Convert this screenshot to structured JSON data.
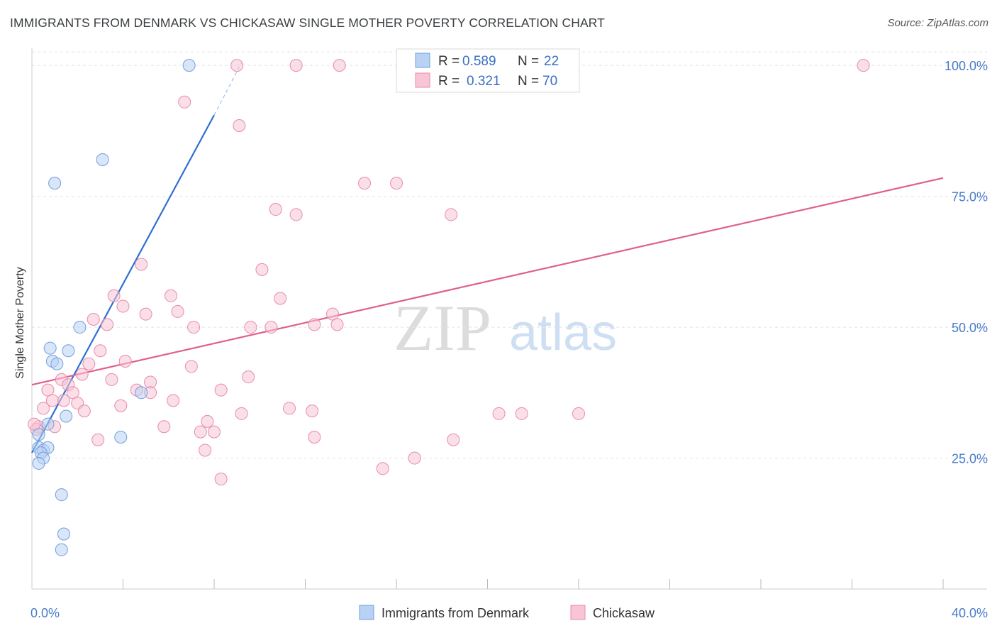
{
  "title": "IMMIGRANTS FROM DENMARK VS CHICKASAW SINGLE MOTHER POVERTY CORRELATION CHART",
  "source": "Source: ZipAtlas.com",
  "watermark": {
    "zip": "ZIP",
    "atlas": "atlas"
  },
  "chart_data": {
    "type": "scatter",
    "title": "IMMIGRANTS FROM DENMARK VS CHICKASAW SINGLE MOTHER POVERTY CORRELATION CHART",
    "xlabel": "",
    "ylabel": "Single Mother Poverty",
    "xlim": [
      0,
      40
    ],
    "ylim": [
      0,
      103
    ],
    "x_tick_labels": [
      "0.0%",
      "40.0%"
    ],
    "y_ticks": [
      25,
      50,
      75,
      100
    ],
    "y_tick_labels": [
      "25.0%",
      "50.0%",
      "75.0%",
      "100.0%"
    ],
    "legend": [
      {
        "r_label": "R =",
        "r_value": "0.589",
        "n_label": "N =",
        "n_value": "22"
      },
      {
        "r_label": "R =",
        "r_value": "0.321",
        "n_label": "N =",
        "n_value": "70"
      }
    ],
    "series": [
      {
        "name": "Immigrants from Denmark",
        "color": "#6f9fe0",
        "fill": "#b9d1f3",
        "line_color": "#2d6fd1",
        "trend": {
          "x0": 0.0,
          "y0": 26.0,
          "x1": 8.0,
          "y1": 90.5,
          "dash_x1": 9.2,
          "dash_y1": 100.5
        },
        "points": [
          [
            6.9,
            100
          ],
          [
            3.1,
            82
          ],
          [
            1.0,
            77.5
          ],
          [
            2.1,
            50
          ],
          [
            0.8,
            46
          ],
          [
            1.6,
            45.5
          ],
          [
            0.9,
            43.5
          ],
          [
            1.1,
            43
          ],
          [
            4.8,
            37.5
          ],
          [
            1.5,
            33
          ],
          [
            0.7,
            31.5
          ],
          [
            3.9,
            29
          ],
          [
            0.3,
            29.5
          ],
          [
            0.3,
            27
          ],
          [
            0.5,
            26.5
          ],
          [
            0.7,
            27
          ],
          [
            0.4,
            26
          ],
          [
            0.5,
            25
          ],
          [
            0.3,
            24
          ],
          [
            1.3,
            18
          ],
          [
            1.4,
            10.5
          ],
          [
            1.3,
            7.5
          ]
        ]
      },
      {
        "name": "Chickasaw",
        "color": "#e88ba8",
        "fill": "#f7c5d5",
        "line_color": "#e0608a",
        "trend": {
          "x0": 0.0,
          "y0": 39.0,
          "x1": 40.0,
          "y1": 78.5
        },
        "points": [
          [
            9.0,
            100
          ],
          [
            11.6,
            100
          ],
          [
            13.5,
            100
          ],
          [
            36.5,
            100
          ],
          [
            6.7,
            93
          ],
          [
            9.1,
            88.5
          ],
          [
            14.6,
            77.5
          ],
          [
            16.0,
            77.5
          ],
          [
            10.7,
            72.5
          ],
          [
            11.6,
            71.5
          ],
          [
            18.4,
            71.5
          ],
          [
            4.8,
            62
          ],
          [
            10.1,
            61
          ],
          [
            3.6,
            56
          ],
          [
            6.1,
            56
          ],
          [
            10.9,
            55.5
          ],
          [
            4.0,
            54
          ],
          [
            6.4,
            53
          ],
          [
            5.0,
            52.5
          ],
          [
            13.2,
            52.5
          ],
          [
            2.7,
            51.5
          ],
          [
            3.3,
            50.5
          ],
          [
            12.4,
            50.5
          ],
          [
            13.4,
            50.5
          ],
          [
            7.1,
            50
          ],
          [
            9.6,
            50
          ],
          [
            10.5,
            50
          ],
          [
            3.0,
            45.5
          ],
          [
            4.1,
            43.5
          ],
          [
            2.5,
            43
          ],
          [
            7.0,
            42.5
          ],
          [
            2.2,
            41
          ],
          [
            1.3,
            40
          ],
          [
            3.5,
            40
          ],
          [
            9.5,
            40.5
          ],
          [
            5.2,
            39.5
          ],
          [
            1.6,
            39
          ],
          [
            0.7,
            38
          ],
          [
            4.6,
            38
          ],
          [
            5.2,
            37.5
          ],
          [
            8.3,
            38
          ],
          [
            1.8,
            37.5
          ],
          [
            0.9,
            36
          ],
          [
            1.4,
            36
          ],
          [
            6.2,
            36
          ],
          [
            2.0,
            35.5
          ],
          [
            3.9,
            35
          ],
          [
            0.5,
            34.5
          ],
          [
            2.3,
            34
          ],
          [
            11.3,
            34.5
          ],
          [
            12.3,
            34
          ],
          [
            9.2,
            33.5
          ],
          [
            20.5,
            33.5
          ],
          [
            21.5,
            33.5
          ],
          [
            24.0,
            33.5
          ],
          [
            7.7,
            32
          ],
          [
            0.3,
            31
          ],
          [
            1.0,
            31
          ],
          [
            5.8,
            31
          ],
          [
            8.0,
            30
          ],
          [
            7.4,
            30
          ],
          [
            2.9,
            28.5
          ],
          [
            12.4,
            29
          ],
          [
            18.5,
            28.5
          ],
          [
            7.6,
            26.5
          ],
          [
            16.8,
            25
          ],
          [
            15.4,
            23
          ],
          [
            8.3,
            21
          ],
          [
            0.2,
            30.5
          ],
          [
            0.1,
            31.5
          ]
        ]
      }
    ]
  }
}
